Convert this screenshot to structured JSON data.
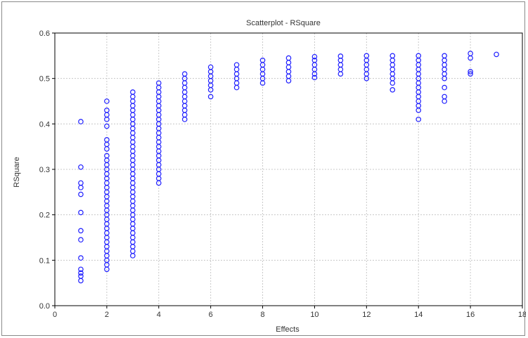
{
  "chart_data": {
    "type": "scatter",
    "title": "Scatterplot - RSquare",
    "xlabel": "Effects",
    "ylabel": "RSquare",
    "xlim": [
      0,
      18
    ],
    "ylim": [
      0.0,
      0.6
    ],
    "x_ticks": [
      "0",
      "2",
      "4",
      "6",
      "8",
      "10",
      "12",
      "14",
      "16",
      "18"
    ],
    "y_ticks": [
      "0.0",
      "0.1",
      "0.2",
      "0.3",
      "0.4",
      "0.5",
      "0.6"
    ],
    "grid": true,
    "legend": "none",
    "marker": "open-circle",
    "colors": {
      "points": "#1f1fff",
      "grid": "#c8c8c8",
      "axis": "#000000",
      "text": "#333333"
    },
    "points": [
      {
        "x": 1,
        "y": 0.405
      },
      {
        "x": 1,
        "y": 0.305
      },
      {
        "x": 1,
        "y": 0.27
      },
      {
        "x": 1,
        "y": 0.26
      },
      {
        "x": 1,
        "y": 0.245
      },
      {
        "x": 1,
        "y": 0.205
      },
      {
        "x": 1,
        "y": 0.165
      },
      {
        "x": 1,
        "y": 0.145
      },
      {
        "x": 1,
        "y": 0.105
      },
      {
        "x": 1,
        "y": 0.08
      },
      {
        "x": 1,
        "y": 0.072
      },
      {
        "x": 1,
        "y": 0.065
      },
      {
        "x": 1,
        "y": 0.055
      },
      {
        "x": 2,
        "y": 0.45
      },
      {
        "x": 2,
        "y": 0.43
      },
      {
        "x": 2,
        "y": 0.42
      },
      {
        "x": 2,
        "y": 0.41
      },
      {
        "x": 2,
        "y": 0.395
      },
      {
        "x": 2,
        "y": 0.365
      },
      {
        "x": 2,
        "y": 0.355
      },
      {
        "x": 2,
        "y": 0.345
      },
      {
        "x": 2,
        "y": 0.33
      },
      {
        "x": 2,
        "y": 0.32
      },
      {
        "x": 2,
        "y": 0.31
      },
      {
        "x": 2,
        "y": 0.3
      },
      {
        "x": 2,
        "y": 0.29
      },
      {
        "x": 2,
        "y": 0.28
      },
      {
        "x": 2,
        "y": 0.27
      },
      {
        "x": 2,
        "y": 0.26
      },
      {
        "x": 2,
        "y": 0.25
      },
      {
        "x": 2,
        "y": 0.24
      },
      {
        "x": 2,
        "y": 0.23
      },
      {
        "x": 2,
        "y": 0.22
      },
      {
        "x": 2,
        "y": 0.21
      },
      {
        "x": 2,
        "y": 0.2
      },
      {
        "x": 2,
        "y": 0.19
      },
      {
        "x": 2,
        "y": 0.18
      },
      {
        "x": 2,
        "y": 0.17
      },
      {
        "x": 2,
        "y": 0.16
      },
      {
        "x": 2,
        "y": 0.15
      },
      {
        "x": 2,
        "y": 0.14
      },
      {
        "x": 2,
        "y": 0.13
      },
      {
        "x": 2,
        "y": 0.12
      },
      {
        "x": 2,
        "y": 0.11
      },
      {
        "x": 2,
        "y": 0.1
      },
      {
        "x": 2,
        "y": 0.09
      },
      {
        "x": 2,
        "y": 0.08
      },
      {
        "x": 3,
        "y": 0.47
      },
      {
        "x": 3,
        "y": 0.46
      },
      {
        "x": 3,
        "y": 0.45
      },
      {
        "x": 3,
        "y": 0.44
      },
      {
        "x": 3,
        "y": 0.43
      },
      {
        "x": 3,
        "y": 0.42
      },
      {
        "x": 3,
        "y": 0.41
      },
      {
        "x": 3,
        "y": 0.4
      },
      {
        "x": 3,
        "y": 0.39
      },
      {
        "x": 3,
        "y": 0.38
      },
      {
        "x": 3,
        "y": 0.37
      },
      {
        "x": 3,
        "y": 0.36
      },
      {
        "x": 3,
        "y": 0.35
      },
      {
        "x": 3,
        "y": 0.34
      },
      {
        "x": 3,
        "y": 0.33
      },
      {
        "x": 3,
        "y": 0.32
      },
      {
        "x": 3,
        "y": 0.31
      },
      {
        "x": 3,
        "y": 0.3
      },
      {
        "x": 3,
        "y": 0.29
      },
      {
        "x": 3,
        "y": 0.28
      },
      {
        "x": 3,
        "y": 0.27
      },
      {
        "x": 3,
        "y": 0.26
      },
      {
        "x": 3,
        "y": 0.25
      },
      {
        "x": 3,
        "y": 0.24
      },
      {
        "x": 3,
        "y": 0.23
      },
      {
        "x": 3,
        "y": 0.22
      },
      {
        "x": 3,
        "y": 0.21
      },
      {
        "x": 3,
        "y": 0.2
      },
      {
        "x": 3,
        "y": 0.19
      },
      {
        "x": 3,
        "y": 0.18
      },
      {
        "x": 3,
        "y": 0.17
      },
      {
        "x": 3,
        "y": 0.16
      },
      {
        "x": 3,
        "y": 0.15
      },
      {
        "x": 3,
        "y": 0.14
      },
      {
        "x": 3,
        "y": 0.13
      },
      {
        "x": 3,
        "y": 0.12
      },
      {
        "x": 3,
        "y": 0.11
      },
      {
        "x": 4,
        "y": 0.49
      },
      {
        "x": 4,
        "y": 0.48
      },
      {
        "x": 4,
        "y": 0.47
      },
      {
        "x": 4,
        "y": 0.46
      },
      {
        "x": 4,
        "y": 0.45
      },
      {
        "x": 4,
        "y": 0.44
      },
      {
        "x": 4,
        "y": 0.43
      },
      {
        "x": 4,
        "y": 0.42
      },
      {
        "x": 4,
        "y": 0.41
      },
      {
        "x": 4,
        "y": 0.4
      },
      {
        "x": 4,
        "y": 0.39
      },
      {
        "x": 4,
        "y": 0.38
      },
      {
        "x": 4,
        "y": 0.37
      },
      {
        "x": 4,
        "y": 0.36
      },
      {
        "x": 4,
        "y": 0.35
      },
      {
        "x": 4,
        "y": 0.34
      },
      {
        "x": 4,
        "y": 0.33
      },
      {
        "x": 4,
        "y": 0.32
      },
      {
        "x": 4,
        "y": 0.31
      },
      {
        "x": 4,
        "y": 0.3
      },
      {
        "x": 4,
        "y": 0.29
      },
      {
        "x": 4,
        "y": 0.28
      },
      {
        "x": 4,
        "y": 0.27
      },
      {
        "x": 5,
        "y": 0.51
      },
      {
        "x": 5,
        "y": 0.5
      },
      {
        "x": 5,
        "y": 0.49
      },
      {
        "x": 5,
        "y": 0.48
      },
      {
        "x": 5,
        "y": 0.47
      },
      {
        "x": 5,
        "y": 0.46
      },
      {
        "x": 5,
        "y": 0.45
      },
      {
        "x": 5,
        "y": 0.44
      },
      {
        "x": 5,
        "y": 0.43
      },
      {
        "x": 5,
        "y": 0.42
      },
      {
        "x": 5,
        "y": 0.41
      },
      {
        "x": 6,
        "y": 0.525
      },
      {
        "x": 6,
        "y": 0.515
      },
      {
        "x": 6,
        "y": 0.505
      },
      {
        "x": 6,
        "y": 0.495
      },
      {
        "x": 6,
        "y": 0.485
      },
      {
        "x": 6,
        "y": 0.475
      },
      {
        "x": 6,
        "y": 0.46
      },
      {
        "x": 7,
        "y": 0.53
      },
      {
        "x": 7,
        "y": 0.52
      },
      {
        "x": 7,
        "y": 0.51
      },
      {
        "x": 7,
        "y": 0.5
      },
      {
        "x": 7,
        "y": 0.49
      },
      {
        "x": 7,
        "y": 0.48
      },
      {
        "x": 8,
        "y": 0.54
      },
      {
        "x": 8,
        "y": 0.53
      },
      {
        "x": 8,
        "y": 0.52
      },
      {
        "x": 8,
        "y": 0.51
      },
      {
        "x": 8,
        "y": 0.5
      },
      {
        "x": 8,
        "y": 0.49
      },
      {
        "x": 9,
        "y": 0.545
      },
      {
        "x": 9,
        "y": 0.535
      },
      {
        "x": 9,
        "y": 0.525
      },
      {
        "x": 9,
        "y": 0.515
      },
      {
        "x": 9,
        "y": 0.505
      },
      {
        "x": 9,
        "y": 0.495
      },
      {
        "x": 10,
        "y": 0.548
      },
      {
        "x": 10,
        "y": 0.54
      },
      {
        "x": 10,
        "y": 0.53
      },
      {
        "x": 10,
        "y": 0.52
      },
      {
        "x": 10,
        "y": 0.51
      },
      {
        "x": 10,
        "y": 0.502
      },
      {
        "x": 11,
        "y": 0.549
      },
      {
        "x": 11,
        "y": 0.54
      },
      {
        "x": 11,
        "y": 0.53
      },
      {
        "x": 11,
        "y": 0.52
      },
      {
        "x": 11,
        "y": 0.51
      },
      {
        "x": 12,
        "y": 0.55
      },
      {
        "x": 12,
        "y": 0.54
      },
      {
        "x": 12,
        "y": 0.53
      },
      {
        "x": 12,
        "y": 0.52
      },
      {
        "x": 12,
        "y": 0.51
      },
      {
        "x": 12,
        "y": 0.5
      },
      {
        "x": 13,
        "y": 0.55
      },
      {
        "x": 13,
        "y": 0.54
      },
      {
        "x": 13,
        "y": 0.53
      },
      {
        "x": 13,
        "y": 0.52
      },
      {
        "x": 13,
        "y": 0.51
      },
      {
        "x": 13,
        "y": 0.5
      },
      {
        "x": 13,
        "y": 0.49
      },
      {
        "x": 13,
        "y": 0.475
      },
      {
        "x": 14,
        "y": 0.55
      },
      {
        "x": 14,
        "y": 0.54
      },
      {
        "x": 14,
        "y": 0.53
      },
      {
        "x": 14,
        "y": 0.52
      },
      {
        "x": 14,
        "y": 0.51
      },
      {
        "x": 14,
        "y": 0.5
      },
      {
        "x": 14,
        "y": 0.49
      },
      {
        "x": 14,
        "y": 0.48
      },
      {
        "x": 14,
        "y": 0.47
      },
      {
        "x": 14,
        "y": 0.46
      },
      {
        "x": 14,
        "y": 0.45
      },
      {
        "x": 14,
        "y": 0.44
      },
      {
        "x": 14,
        "y": 0.43
      },
      {
        "x": 14,
        "y": 0.41
      },
      {
        "x": 15,
        "y": 0.55
      },
      {
        "x": 15,
        "y": 0.54
      },
      {
        "x": 15,
        "y": 0.53
      },
      {
        "x": 15,
        "y": 0.52
      },
      {
        "x": 15,
        "y": 0.51
      },
      {
        "x": 15,
        "y": 0.5
      },
      {
        "x": 15,
        "y": 0.48
      },
      {
        "x": 15,
        "y": 0.46
      },
      {
        "x": 15,
        "y": 0.45
      },
      {
        "x": 16,
        "y": 0.555
      },
      {
        "x": 16,
        "y": 0.545
      },
      {
        "x": 16,
        "y": 0.515
      },
      {
        "x": 16,
        "y": 0.51
      },
      {
        "x": 17,
        "y": 0.553
      }
    ]
  }
}
